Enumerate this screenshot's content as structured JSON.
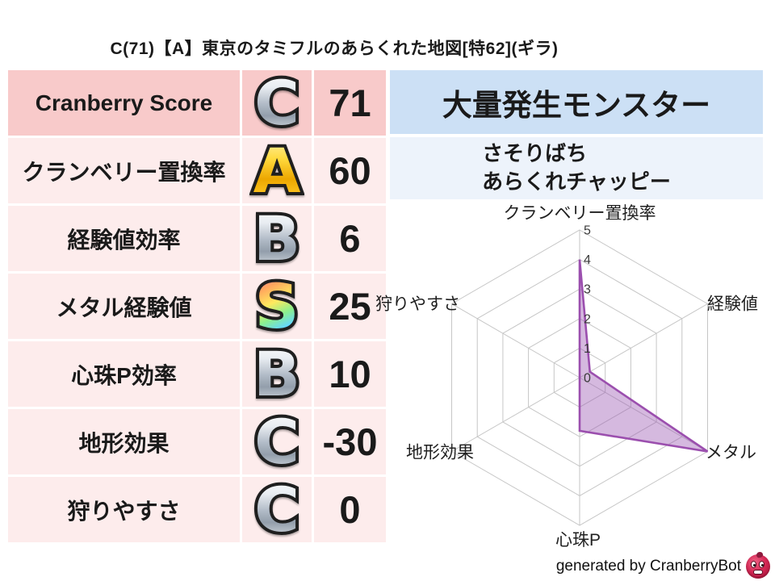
{
  "title": "C(71)【A】東京のタミフルのあらくれた地図[特62](ギラ)",
  "table": {
    "rows": [
      {
        "label": "Cranberry Score",
        "grade": "C",
        "grade_style": "silver",
        "value": "71"
      },
      {
        "label": "クランベリー置換率",
        "grade": "A",
        "grade_style": "gold",
        "value": "60"
      },
      {
        "label": "経験値効率",
        "grade": "B",
        "grade_style": "silver",
        "value": "6"
      },
      {
        "label": "メタル経験値",
        "grade": "S",
        "grade_style": "rainbow",
        "value": "25"
      },
      {
        "label": "心珠P効率",
        "grade": "B",
        "grade_style": "silver",
        "value": "10"
      },
      {
        "label": "地形効果",
        "grade": "C",
        "grade_style": "silver",
        "value": "-30"
      },
      {
        "label": "狩りやすさ",
        "grade": "C",
        "grade_style": "silver",
        "value": "0"
      }
    ]
  },
  "monsters": {
    "header": "大量発生モンスター",
    "names": [
      "さそりばち",
      "あらくれチャッピー"
    ]
  },
  "chart_data": {
    "type": "radar",
    "title": "",
    "categories": [
      "クランベリー置換率",
      "経験値",
      "メタル",
      "心珠P",
      "地形効果",
      "狩りやすさ"
    ],
    "values": [
      4,
      0.4,
      5,
      1.8,
      0,
      0
    ],
    "ticks": [
      0,
      1,
      2,
      3,
      4,
      5
    ],
    "rlim": [
      0,
      5
    ],
    "grid": true,
    "legend": false,
    "fill_color": "#9b59b2",
    "fill_opacity": 0.42,
    "line_color": "#9b4fae",
    "grid_color": "#c6c6c6",
    "tick_label_color": "#3a3a3a",
    "axis_label_color": "#1f1f1f"
  },
  "footer": {
    "credit": "generated by CranberryBot",
    "icon": "cranberry-bot-icon"
  },
  "colors": {
    "row_header_pink": "#f8caca",
    "row_pink": "#fdecec",
    "monster_header_blue": "#cce0f5",
    "monster_list_blue": "#edf3fb",
    "accent_purple": "#9b59b2"
  }
}
